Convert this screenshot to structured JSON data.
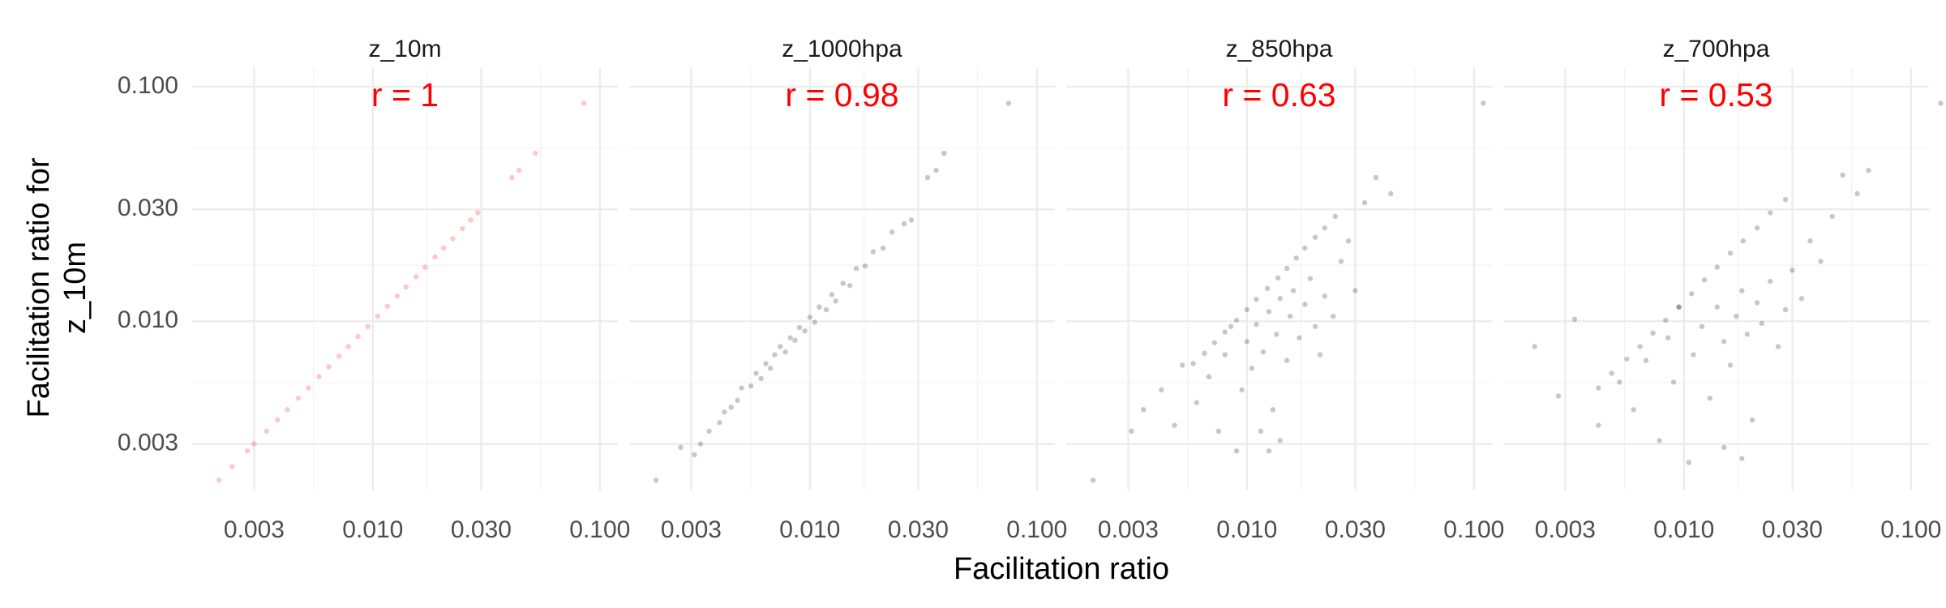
{
  "chart_data": {
    "type": "scatter",
    "xlabel": "Facilitation ratio",
    "ylabel": [
      "Facilitation ratio for",
      "z_10m"
    ],
    "log_x": true,
    "log_y": true,
    "grid": true,
    "xlim": [
      0.0016,
      0.12
    ],
    "ylim": [
      0.0019,
      0.12
    ],
    "xticks": [
      0.003,
      {
        "value": 0.01,
        "label": "0.010"
      },
      {
        "value": 0.03,
        "label": "0.030"
      },
      {
        "value": 0.1,
        "label": "0.100"
      }
    ],
    "yticks": [
      0.003,
      {
        "value": 0.01,
        "label": "0.010"
      },
      {
        "value": 0.03,
        "label": "0.030"
      },
      {
        "value": 0.1,
        "label": "0.100"
      }
    ],
    "panels": [
      {
        "title": "z_10m",
        "annotation": "r = 1",
        "annotation_color": "#ff0000",
        "color": "#ff0000",
        "x": [
          0.0021,
          0.0024,
          0.0028,
          0.003,
          0.0034,
          0.0038,
          0.0042,
          0.0047,
          0.0052,
          0.0058,
          0.0064,
          0.0071,
          0.0078,
          0.0086,
          0.0095,
          0.0105,
          0.0116,
          0.0128,
          0.014,
          0.0155,
          0.017,
          0.0188,
          0.0205,
          0.0225,
          0.0248,
          0.027,
          0.029,
          0.041,
          0.044,
          0.052,
          0.085
        ],
        "y": [
          0.0021,
          0.0024,
          0.0028,
          0.003,
          0.0034,
          0.0038,
          0.0042,
          0.0047,
          0.0052,
          0.0058,
          0.0064,
          0.0071,
          0.0078,
          0.0086,
          0.0095,
          0.0105,
          0.0116,
          0.0128,
          0.014,
          0.0155,
          0.017,
          0.0188,
          0.0205,
          0.0225,
          0.0248,
          0.027,
          0.029,
          0.041,
          0.044,
          0.052,
          0.085
        ]
      },
      {
        "title": "z_1000hpa",
        "annotation": "r = 0.98",
        "annotation_color": "#ff0000",
        "color": "#000000",
        "x": [
          0.0021,
          0.0027,
          0.0031,
          0.0033,
          0.0036,
          0.004,
          0.0042,
          0.0045,
          0.0048,
          0.005,
          0.0055,
          0.0058,
          0.0061,
          0.0064,
          0.0067,
          0.007,
          0.0074,
          0.0078,
          0.0082,
          0.0086,
          0.009,
          0.0095,
          0.01,
          0.0105,
          0.011,
          0.0118,
          0.0125,
          0.013,
          0.014,
          0.015,
          0.016,
          0.0175,
          0.019,
          0.021,
          0.023,
          0.026,
          0.028,
          0.033,
          0.036,
          0.039,
          0.075
        ],
        "y": [
          0.0021,
          0.0029,
          0.0027,
          0.003,
          0.0034,
          0.0037,
          0.0041,
          0.0043,
          0.0046,
          0.0052,
          0.0053,
          0.006,
          0.0057,
          0.0066,
          0.0063,
          0.0072,
          0.0078,
          0.0074,
          0.0085,
          0.0083,
          0.0094,
          0.0091,
          0.0104,
          0.0099,
          0.0115,
          0.0112,
          0.013,
          0.0122,
          0.0145,
          0.0142,
          0.0168,
          0.0172,
          0.0198,
          0.0205,
          0.024,
          0.026,
          0.027,
          0.041,
          0.044,
          0.052,
          0.085
        ]
      },
      {
        "title": "z_850hpa",
        "annotation": "r = 0.63",
        "annotation_color": "#ff0000",
        "color": "#000000",
        "x": [
          0.0058,
          0.0065,
          0.0072,
          0.008,
          0.009,
          0.01,
          0.011,
          0.0123,
          0.0137,
          0.015,
          0.0165,
          0.018,
          0.02,
          0.022,
          0.0245,
          0.0021,
          0.0031,
          0.0035,
          0.0042,
          0.0048,
          0.0052,
          0.006,
          0.0068,
          0.0075,
          0.008,
          0.0085,
          0.009,
          0.0095,
          0.01,
          0.0105,
          0.011,
          0.0118,
          0.0125,
          0.013,
          0.0135,
          0.014,
          0.015,
          0.0155,
          0.016,
          0.017,
          0.018,
          0.019,
          0.02,
          0.021,
          0.022,
          0.024,
          0.026,
          0.028,
          0.03,
          0.033,
          0.037,
          0.043,
          0.014,
          0.0115,
          0.0125,
          0.11
        ],
        "y": [
          0.0066,
          0.0073,
          0.0081,
          0.009,
          0.0101,
          0.0112,
          0.0124,
          0.0138,
          0.0153,
          0.0168,
          0.0186,
          0.0205,
          0.0228,
          0.025,
          0.028,
          0.0021,
          0.0034,
          0.0042,
          0.0051,
          0.0036,
          0.0065,
          0.0045,
          0.0058,
          0.0034,
          0.0072,
          0.0095,
          0.0028,
          0.0051,
          0.0082,
          0.0063,
          0.0097,
          0.0074,
          0.011,
          0.0042,
          0.0088,
          0.0125,
          0.0068,
          0.0105,
          0.0135,
          0.0085,
          0.0118,
          0.0152,
          0.0095,
          0.0072,
          0.0128,
          0.0105,
          0.018,
          0.022,
          0.0135,
          0.032,
          0.041,
          0.035,
          0.0031,
          0.0034,
          0.0028,
          0.085
        ]
      },
      {
        "title": "z_700hpa",
        "annotation": "r = 0.53",
        "annotation_color": "#ff0000",
        "color": "#000000",
        "x": [
          0.0042,
          0.0048,
          0.0056,
          0.0064,
          0.0073,
          0.0083,
          0.0095,
          0.0108,
          0.0123,
          0.014,
          0.016,
          0.0182,
          0.021,
          0.024,
          0.028,
          0.0022,
          0.0028,
          0.0033,
          0.0042,
          0.0052,
          0.006,
          0.0068,
          0.0078,
          0.0085,
          0.009,
          0.0095,
          0.0105,
          0.011,
          0.012,
          0.013,
          0.014,
          0.015,
          0.016,
          0.017,
          0.018,
          0.019,
          0.02,
          0.021,
          0.022,
          0.024,
          0.026,
          0.028,
          0.03,
          0.033,
          0.036,
          0.04,
          0.045,
          0.05,
          0.058,
          0.065,
          0.015,
          0.018,
          0.135
        ],
        "y": [
          0.0052,
          0.006,
          0.0069,
          0.0078,
          0.0089,
          0.0101,
          0.0115,
          0.0131,
          0.015,
          0.017,
          0.0195,
          0.022,
          0.025,
          0.029,
          0.033,
          0.0078,
          0.0048,
          0.0102,
          0.0036,
          0.0055,
          0.0042,
          0.0068,
          0.0031,
          0.0085,
          0.0055,
          0.0115,
          0.0025,
          0.0072,
          0.0095,
          0.0047,
          0.0115,
          0.0082,
          0.0065,
          0.0105,
          0.0135,
          0.0088,
          0.0038,
          0.012,
          0.0098,
          0.0148,
          0.0078,
          0.0112,
          0.0165,
          0.0125,
          0.022,
          0.018,
          0.028,
          0.042,
          0.035,
          0.044,
          0.0029,
          0.0026,
          0.085
        ]
      }
    ]
  }
}
